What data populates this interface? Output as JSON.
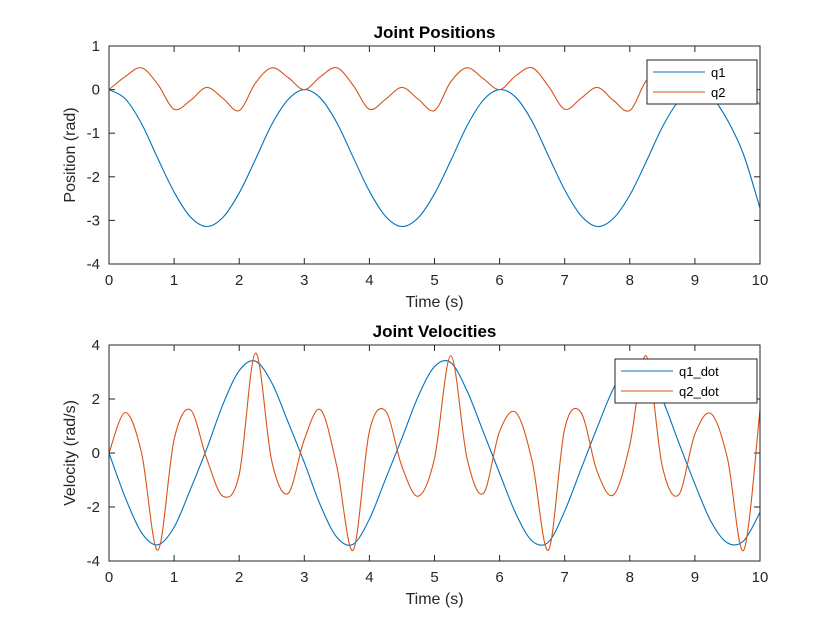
{
  "colors": {
    "series1": "#0072BD",
    "series2": "#D95319",
    "axis": "#262626",
    "background": "#ffffff"
  },
  "chart_data": [
    {
      "type": "line",
      "title": "Joint Positions",
      "xlabel": "Time (s)",
      "ylabel": "Position (rad)",
      "xlim": [
        0,
        10
      ],
      "ylim": [
        -4,
        1
      ],
      "xticks": [
        "0",
        "1",
        "2",
        "3",
        "4",
        "5",
        "6",
        "7",
        "8",
        "9",
        "10"
      ],
      "yticks": [
        "1",
        "0",
        "-1",
        "-2",
        "-3",
        "-4"
      ],
      "grid": false,
      "legend": "top-right",
      "series": [
        {
          "name": "q1",
          "color": "#0072BD",
          "x": [
            0,
            0.25,
            0.5,
            0.75,
            1,
            1.25,
            1.5,
            1.75,
            2,
            2.25,
            2.5,
            2.75,
            3,
            3.25,
            3.5,
            3.75,
            4,
            4.25,
            4.5,
            4.75,
            5,
            5.25,
            5.5,
            5.75,
            6,
            6.25,
            6.5,
            6.75,
            7,
            7.25,
            7.5,
            7.75,
            8,
            8.25,
            8.5,
            8.75,
            9,
            9.25,
            9.5,
            9.75,
            10
          ],
          "y": [
            0,
            -0.21,
            -0.78,
            -1.58,
            -2.35,
            -2.92,
            -3.14,
            -2.93,
            -2.37,
            -1.6,
            -0.8,
            -0.23,
            0,
            -0.2,
            -0.76,
            -1.55,
            -2.33,
            -2.91,
            -3.14,
            -2.94,
            -2.39,
            -1.63,
            -0.83,
            -0.24,
            0,
            -0.18,
            -0.73,
            -1.52,
            -2.3,
            -2.89,
            -3.14,
            -2.95,
            -2.42,
            -1.66,
            -0.86,
            -0.26,
            0,
            -0.16,
            -0.7,
            -1.5,
            -2.72
          ]
        },
        {
          "name": "q2",
          "color": "#D95319",
          "x": [
            0,
            0.25,
            0.5,
            0.75,
            1,
            1.25,
            1.5,
            1.75,
            2,
            2.25,
            2.5,
            2.75,
            3,
            3.25,
            3.5,
            3.75,
            4,
            4.25,
            4.5,
            4.75,
            5,
            5.25,
            5.5,
            5.75,
            6,
            6.25,
            6.5,
            6.75,
            7,
            7.25,
            7.5,
            7.75,
            8,
            8.25,
            8.5,
            8.75,
            9,
            9.25,
            9.5,
            9.75,
            10
          ],
          "y": [
            0,
            0.3,
            0.5,
            0.12,
            -0.45,
            -0.25,
            0.05,
            -0.2,
            -0.48,
            0.15,
            0.5,
            0.28,
            0,
            0.3,
            0.5,
            0.1,
            -0.45,
            -0.22,
            0.05,
            -0.22,
            -0.48,
            0.18,
            0.5,
            0.25,
            0,
            0.32,
            0.5,
            0.08,
            -0.45,
            -0.2,
            0.05,
            -0.25,
            -0.48,
            0.2,
            0.5,
            0.22,
            0,
            0.33,
            0.48,
            0.05,
            -0.35
          ]
        }
      ]
    },
    {
      "type": "line",
      "title": "Joint Velocities",
      "xlabel": "Time (s)",
      "ylabel": "Velocity (rad/s)",
      "xlim": [
        0,
        10
      ],
      "ylim": [
        -4,
        4
      ],
      "xticks": [
        "0",
        "1",
        "2",
        "3",
        "4",
        "5",
        "6",
        "7",
        "8",
        "9",
        "10"
      ],
      "yticks": [
        "4",
        "2",
        "0",
        "-2",
        "-4"
      ],
      "grid": false,
      "legend": "top-right",
      "series": [
        {
          "name": "q1_dot",
          "color": "#0072BD",
          "x": [
            0,
            0.25,
            0.5,
            0.75,
            1,
            1.25,
            1.5,
            1.75,
            2,
            2.25,
            2.5,
            2.75,
            3,
            3.25,
            3.5,
            3.75,
            4,
            4.25,
            4.5,
            4.75,
            5,
            5.25,
            5.5,
            5.75,
            6,
            6.25,
            6.5,
            6.75,
            7,
            7.25,
            7.5,
            7.75,
            8,
            8.25,
            8.5,
            8.75,
            9,
            9.25,
            9.5,
            9.75,
            10
          ],
          "y": [
            0,
            -1.65,
            -2.95,
            -3.4,
            -2.75,
            -1.35,
            0.15,
            1.8,
            3.05,
            3.4,
            2.6,
            1.15,
            -0.35,
            -1.95,
            -3.12,
            -3.38,
            -2.45,
            -0.95,
            0.55,
            2.1,
            3.2,
            3.35,
            2.3,
            0.78,
            -0.75,
            -2.25,
            -3.26,
            -3.3,
            -2.15,
            -0.6,
            0.95,
            2.4,
            3.3,
            3.28,
            2.0,
            0.4,
            -1.15,
            -2.55,
            -3.33,
            -3.25,
            -2.2
          ]
        },
        {
          "name": "q2_dot",
          "color": "#D95319",
          "x": [
            0,
            0.25,
            0.5,
            0.75,
            1,
            1.25,
            1.5,
            1.75,
            2,
            2.25,
            2.5,
            2.75,
            3,
            3.25,
            3.5,
            3.75,
            4,
            4.25,
            4.5,
            4.75,
            5,
            5.25,
            5.5,
            5.75,
            6,
            6.25,
            6.5,
            6.75,
            7,
            7.25,
            7.5,
            7.75,
            8,
            8.25,
            8.5,
            8.75,
            9,
            9.25,
            9.5,
            9.75,
            10
          ],
          "y": [
            0,
            1.5,
            0,
            -3.6,
            0.5,
            1.6,
            -0.2,
            -1.6,
            -0.8,
            3.7,
            -0.3,
            -1.5,
            0.5,
            1.6,
            -0.5,
            -3.6,
            0.8,
            1.55,
            -0.5,
            -1.6,
            -0.2,
            3.6,
            -0.2,
            -1.5,
            0.8,
            1.5,
            -0.3,
            -3.6,
            0.9,
            1.5,
            -0.7,
            -1.55,
            0.3,
            3.6,
            -0.5,
            -1.55,
            0.7,
            1.45,
            -0.2,
            -3.6,
            1.6
          ]
        }
      ]
    }
  ]
}
